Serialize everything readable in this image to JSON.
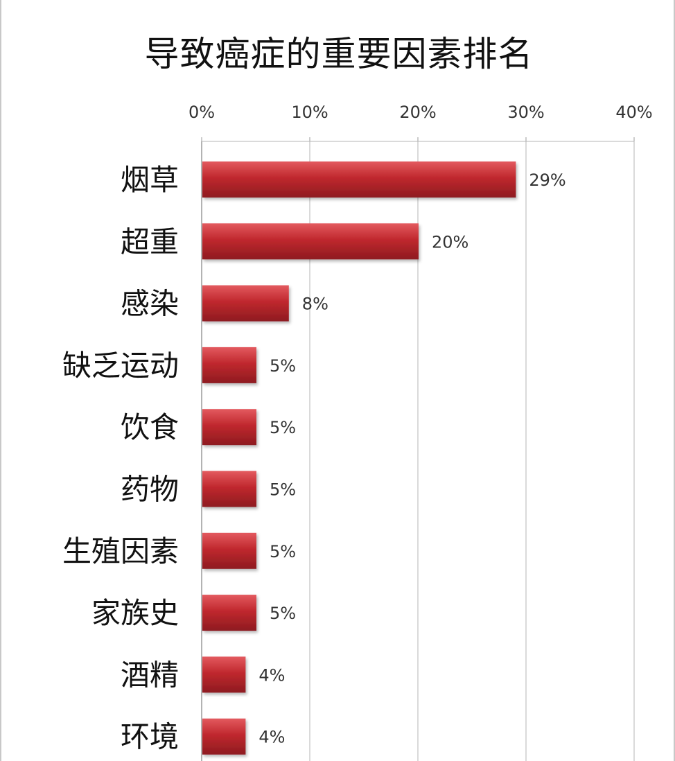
{
  "chart_data": {
    "type": "bar",
    "orientation": "horizontal",
    "title": "导致癌症的重要因素排名",
    "categories": [
      "烟草",
      "超重",
      "感染",
      "缺乏运动",
      "饮食",
      "药物",
      "生殖因素",
      "家族史",
      "酒精",
      "环境"
    ],
    "values": [
      29,
      20,
      8,
      5,
      5,
      5,
      5,
      5,
      4,
      4
    ],
    "value_unit": "%",
    "x_ticks": [
      "0%",
      "10%",
      "20%",
      "30%",
      "40%"
    ],
    "xlim": [
      0,
      40
    ],
    "axis_position": "top",
    "grid": true,
    "legend": "none",
    "bar_color": "#c0282e"
  }
}
